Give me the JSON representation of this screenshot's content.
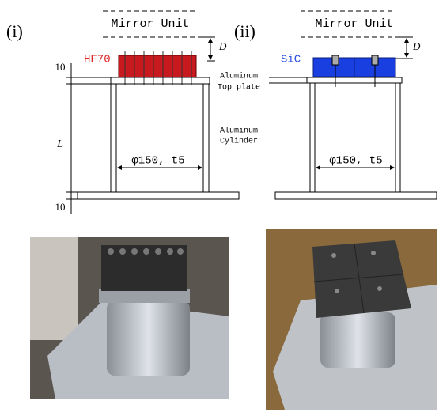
{
  "panels": [
    {
      "label": "(i)",
      "mirror_unit": "Mirror Unit",
      "gap": "D",
      "material": "HF70",
      "diameter": "φ150, t5"
    },
    {
      "label": "(ii)",
      "mirror_unit": "Mirror Unit",
      "gap": "D",
      "material": "SiC",
      "diameter": "φ150, t5"
    }
  ],
  "dimensions": {
    "top_plate_thickness": "10",
    "length": "L",
    "bottom_plate_thickness": "10"
  },
  "parts": {
    "top_plate": [
      "Aluminum",
      "Top plate"
    ],
    "cylinder": [
      "Aluminum",
      "Cylinder"
    ]
  }
}
